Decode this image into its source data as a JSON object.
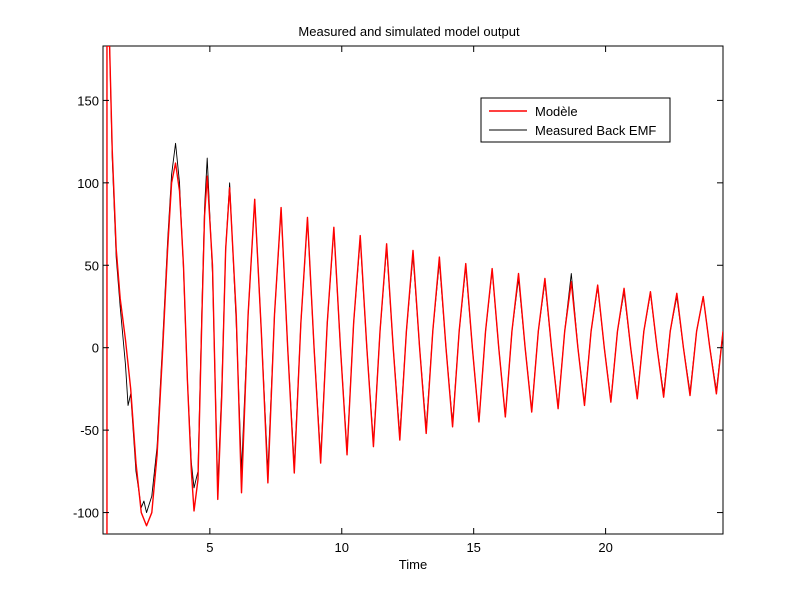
{
  "chart_data": {
    "type": "line",
    "title": "Measured and simulated model output",
    "xlabel": "Time",
    "ylabel": "",
    "xlim": [
      0.95,
      24.45
    ],
    "ylim": [
      -113,
      183
    ],
    "x_ticks": [
      5,
      10,
      15,
      20
    ],
    "y_ticks": [
      -100,
      -50,
      0,
      50,
      100,
      150
    ],
    "x_tick_labels": [
      "5",
      "10",
      "15",
      "20"
    ],
    "y_tick_labels": [
      "-100",
      "-50",
      "0",
      "50",
      "100",
      "150"
    ],
    "grid": false,
    "legend_position": "top-right",
    "series": [
      {
        "name": "Modèle",
        "color": "#ff0000",
        "points": [
          [
            1.1,
            -113
          ],
          [
            1.1,
            183
          ],
          [
            1.2,
            183
          ],
          [
            1.3,
            120
          ],
          [
            1.45,
            60
          ],
          [
            1.6,
            30
          ],
          [
            1.8,
            5
          ],
          [
            2.0,
            -25
          ],
          [
            2.2,
            -70
          ],
          [
            2.4,
            -100
          ],
          [
            2.6,
            -108
          ],
          [
            2.8,
            -100
          ],
          [
            3.0,
            -65
          ],
          [
            3.2,
            -5
          ],
          [
            3.4,
            60
          ],
          [
            3.55,
            100
          ],
          [
            3.7,
            112
          ],
          [
            3.85,
            95
          ],
          [
            4.0,
            50
          ],
          [
            4.15,
            -20
          ],
          [
            4.3,
            -75
          ],
          [
            4.4,
            -99
          ],
          [
            4.55,
            -80
          ],
          [
            4.7,
            20
          ],
          [
            4.8,
            80
          ],
          [
            4.9,
            104
          ],
          [
            5.1,
            50
          ],
          [
            5.3,
            -92
          ],
          [
            5.45,
            -30
          ],
          [
            5.6,
            60
          ],
          [
            5.75,
            97
          ],
          [
            6.0,
            20
          ],
          [
            6.2,
            -88
          ],
          [
            6.45,
            20
          ],
          [
            6.7,
            90
          ],
          [
            6.95,
            10
          ],
          [
            7.2,
            -82
          ],
          [
            7.45,
            20
          ],
          [
            7.7,
            85
          ],
          [
            7.95,
            0
          ],
          [
            8.2,
            -76
          ],
          [
            8.45,
            15
          ],
          [
            8.7,
            79
          ],
          [
            8.95,
            0
          ],
          [
            9.2,
            -70
          ],
          [
            9.45,
            15
          ],
          [
            9.7,
            73
          ],
          [
            9.95,
            0
          ],
          [
            10.2,
            -65
          ],
          [
            10.45,
            15
          ],
          [
            10.7,
            68
          ],
          [
            10.95,
            0
          ],
          [
            11.2,
            -60
          ],
          [
            11.45,
            10
          ],
          [
            11.7,
            63
          ],
          [
            11.95,
            0
          ],
          [
            12.2,
            -56
          ],
          [
            12.45,
            10
          ],
          [
            12.7,
            59
          ],
          [
            12.95,
            0
          ],
          [
            13.2,
            -52
          ],
          [
            13.45,
            10
          ],
          [
            13.7,
            55
          ],
          [
            13.95,
            0
          ],
          [
            14.2,
            -48
          ],
          [
            14.45,
            10
          ],
          [
            14.7,
            51
          ],
          [
            14.95,
            0
          ],
          [
            15.2,
            -45
          ],
          [
            15.45,
            10
          ],
          [
            15.7,
            48
          ],
          [
            15.95,
            0
          ],
          [
            16.2,
            -42
          ],
          [
            16.45,
            10
          ],
          [
            16.7,
            45
          ],
          [
            16.95,
            0
          ],
          [
            17.2,
            -39
          ],
          [
            17.45,
            10
          ],
          [
            17.7,
            42
          ],
          [
            17.95,
            0
          ],
          [
            18.2,
            -37
          ],
          [
            18.45,
            10
          ],
          [
            18.7,
            40
          ],
          [
            18.95,
            0
          ],
          [
            19.2,
            -35
          ],
          [
            19.45,
            10
          ],
          [
            19.7,
            38
          ],
          [
            19.95,
            0
          ],
          [
            20.2,
            -33
          ],
          [
            20.45,
            10
          ],
          [
            20.7,
            36
          ],
          [
            20.95,
            0
          ],
          [
            21.2,
            -31
          ],
          [
            21.45,
            10
          ],
          [
            21.7,
            34
          ],
          [
            21.95,
            0
          ],
          [
            22.2,
            -30
          ],
          [
            22.45,
            10
          ],
          [
            22.7,
            33
          ],
          [
            22.95,
            0
          ],
          [
            23.2,
            -29
          ],
          [
            23.45,
            10
          ],
          [
            23.7,
            31
          ],
          [
            23.95,
            0
          ],
          [
            24.2,
            -28
          ],
          [
            24.45,
            10
          ]
        ]
      },
      {
        "name": "Measured Back EMF",
        "color": "#000000",
        "points": [
          [
            1.2,
            183
          ],
          [
            1.3,
            115
          ],
          [
            1.45,
            55
          ],
          [
            1.6,
            25
          ],
          [
            1.8,
            -10
          ],
          [
            1.9,
            -35
          ],
          [
            2.0,
            -28
          ],
          [
            2.2,
            -75
          ],
          [
            2.4,
            -97
          ],
          [
            2.5,
            -93
          ],
          [
            2.6,
            -100
          ],
          [
            2.8,
            -90
          ],
          [
            3.0,
            -60
          ],
          [
            3.2,
            0
          ],
          [
            3.4,
            65
          ],
          [
            3.55,
            105
          ],
          [
            3.7,
            124
          ],
          [
            3.85,
            100
          ],
          [
            4.0,
            48
          ],
          [
            4.15,
            -20
          ],
          [
            4.3,
            -70
          ],
          [
            4.4,
            -85
          ],
          [
            4.55,
            -75
          ],
          [
            4.7,
            25
          ],
          [
            4.8,
            85
          ],
          [
            4.9,
            115
          ],
          [
            5.1,
            45
          ],
          [
            5.3,
            -85
          ],
          [
            5.45,
            -25
          ],
          [
            5.6,
            60
          ],
          [
            5.75,
            100
          ],
          [
            6.0,
            15
          ],
          [
            6.2,
            -75
          ],
          [
            6.45,
            20
          ],
          [
            6.7,
            90
          ],
          [
            6.95,
            10
          ],
          [
            7.2,
            -75
          ],
          [
            7.45,
            20
          ],
          [
            7.7,
            84
          ],
          [
            7.95,
            0
          ],
          [
            8.2,
            -72
          ],
          [
            8.45,
            15
          ],
          [
            8.7,
            78
          ],
          [
            8.95,
            0
          ],
          [
            9.2,
            -67
          ],
          [
            9.45,
            15
          ],
          [
            9.7,
            72
          ],
          [
            9.95,
            0
          ],
          [
            10.2,
            -63
          ],
          [
            10.45,
            15
          ],
          [
            10.7,
            66
          ],
          [
            10.95,
            0
          ],
          [
            11.2,
            -58
          ],
          [
            11.45,
            10
          ],
          [
            11.7,
            61
          ],
          [
            11.95,
            0
          ],
          [
            12.2,
            -53
          ],
          [
            12.45,
            10
          ],
          [
            12.7,
            56
          ],
          [
            12.95,
            0
          ],
          [
            13.2,
            -49
          ],
          [
            13.45,
            10
          ],
          [
            13.7,
            52
          ],
          [
            13.95,
            0
          ],
          [
            14.2,
            -46
          ],
          [
            14.45,
            10
          ],
          [
            14.7,
            49
          ],
          [
            14.95,
            0
          ],
          [
            15.2,
            -45
          ],
          [
            15.45,
            10
          ],
          [
            15.7,
            47
          ],
          [
            15.95,
            0
          ],
          [
            16.2,
            -42
          ],
          [
            16.45,
            10
          ],
          [
            16.7,
            42
          ],
          [
            16.95,
            0
          ],
          [
            17.2,
            -38
          ],
          [
            17.45,
            10
          ],
          [
            17.7,
            40
          ],
          [
            17.95,
            0
          ],
          [
            18.2,
            -36
          ],
          [
            18.45,
            10
          ],
          [
            18.7,
            45
          ],
          [
            18.95,
            0
          ],
          [
            19.2,
            -34
          ],
          [
            19.45,
            10
          ],
          [
            19.7,
            37
          ],
          [
            19.95,
            0
          ],
          [
            20.2,
            -32
          ],
          [
            20.45,
            10
          ],
          [
            20.7,
            34
          ],
          [
            20.95,
            0
          ],
          [
            21.2,
            -30
          ],
          [
            21.45,
            10
          ],
          [
            21.7,
            33
          ],
          [
            21.95,
            0
          ],
          [
            22.2,
            -28
          ],
          [
            22.45,
            10
          ],
          [
            22.7,
            31
          ],
          [
            22.95,
            0
          ],
          [
            23.2,
            -27
          ],
          [
            23.45,
            10
          ],
          [
            23.7,
            31
          ],
          [
            23.95,
            0
          ],
          [
            24.2,
            -26
          ],
          [
            24.45,
            10
          ]
        ]
      }
    ]
  }
}
